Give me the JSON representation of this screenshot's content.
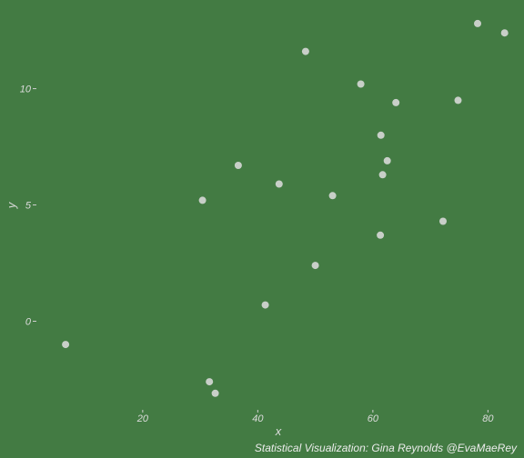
{
  "chart_data": {
    "type": "scatter",
    "title": "",
    "xlabel": "x",
    "ylabel": "y",
    "caption": "Statistical Visualization: Gina Reynolds @EvaMaeRey",
    "grid": false,
    "background_color": "#437b43",
    "point_color": "#c8cfc8",
    "text_color": "#dcdcdc",
    "xlim": [
      2,
      85
    ],
    "ylim": [
      -4.2,
      13.5
    ],
    "x_ticks": [
      20,
      40,
      60,
      80
    ],
    "x_tick_labels": [
      "20",
      "40",
      "60",
      "80"
    ],
    "y_ticks": [
      0,
      5,
      10
    ],
    "y_tick_labels": [
      "0",
      "5",
      "10"
    ],
    "points": [
      {
        "x": 6.6,
        "y": -1.0
      },
      {
        "x": 30.4,
        "y": 5.2
      },
      {
        "x": 31.6,
        "y": -2.6
      },
      {
        "x": 32.6,
        "y": -3.1
      },
      {
        "x": 36.6,
        "y": 6.7
      },
      {
        "x": 41.3,
        "y": 0.7
      },
      {
        "x": 43.7,
        "y": 5.9
      },
      {
        "x": 48.3,
        "y": 11.6
      },
      {
        "x": 50.0,
        "y": 2.4
      },
      {
        "x": 53.0,
        "y": 5.4
      },
      {
        "x": 57.9,
        "y": 10.2
      },
      {
        "x": 61.3,
        "y": 3.7
      },
      {
        "x": 61.4,
        "y": 8.0
      },
      {
        "x": 61.7,
        "y": 6.3
      },
      {
        "x": 62.5,
        "y": 6.9
      },
      {
        "x": 64.0,
        "y": 9.4
      },
      {
        "x": 72.2,
        "y": 4.3
      },
      {
        "x": 74.8,
        "y": 9.5
      },
      {
        "x": 78.2,
        "y": 12.8
      },
      {
        "x": 82.9,
        "y": 12.4
      }
    ]
  }
}
